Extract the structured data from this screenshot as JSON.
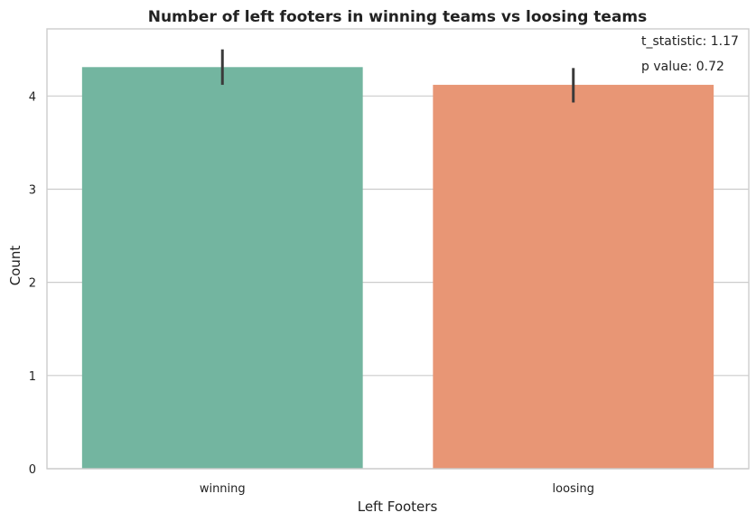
{
  "chart_data": {
    "type": "bar",
    "title": "Number of left footers in winning teams vs loosing teams",
    "xlabel": "Left Footers",
    "ylabel": "Count",
    "categories": [
      "winning",
      "loosing"
    ],
    "values": [
      4.31,
      4.12
    ],
    "error_low": [
      4.12,
      3.93
    ],
    "error_high": [
      4.5,
      4.3
    ],
    "colors": [
      "#73b5a0",
      "#e89675"
    ],
    "ylim": [
      0,
      4.72
    ],
    "yticks": [
      0,
      1,
      2,
      3,
      4
    ],
    "grid": "horizontal",
    "annotations": [
      "t_statistic: 1.17",
      "p value: 0.72"
    ]
  }
}
